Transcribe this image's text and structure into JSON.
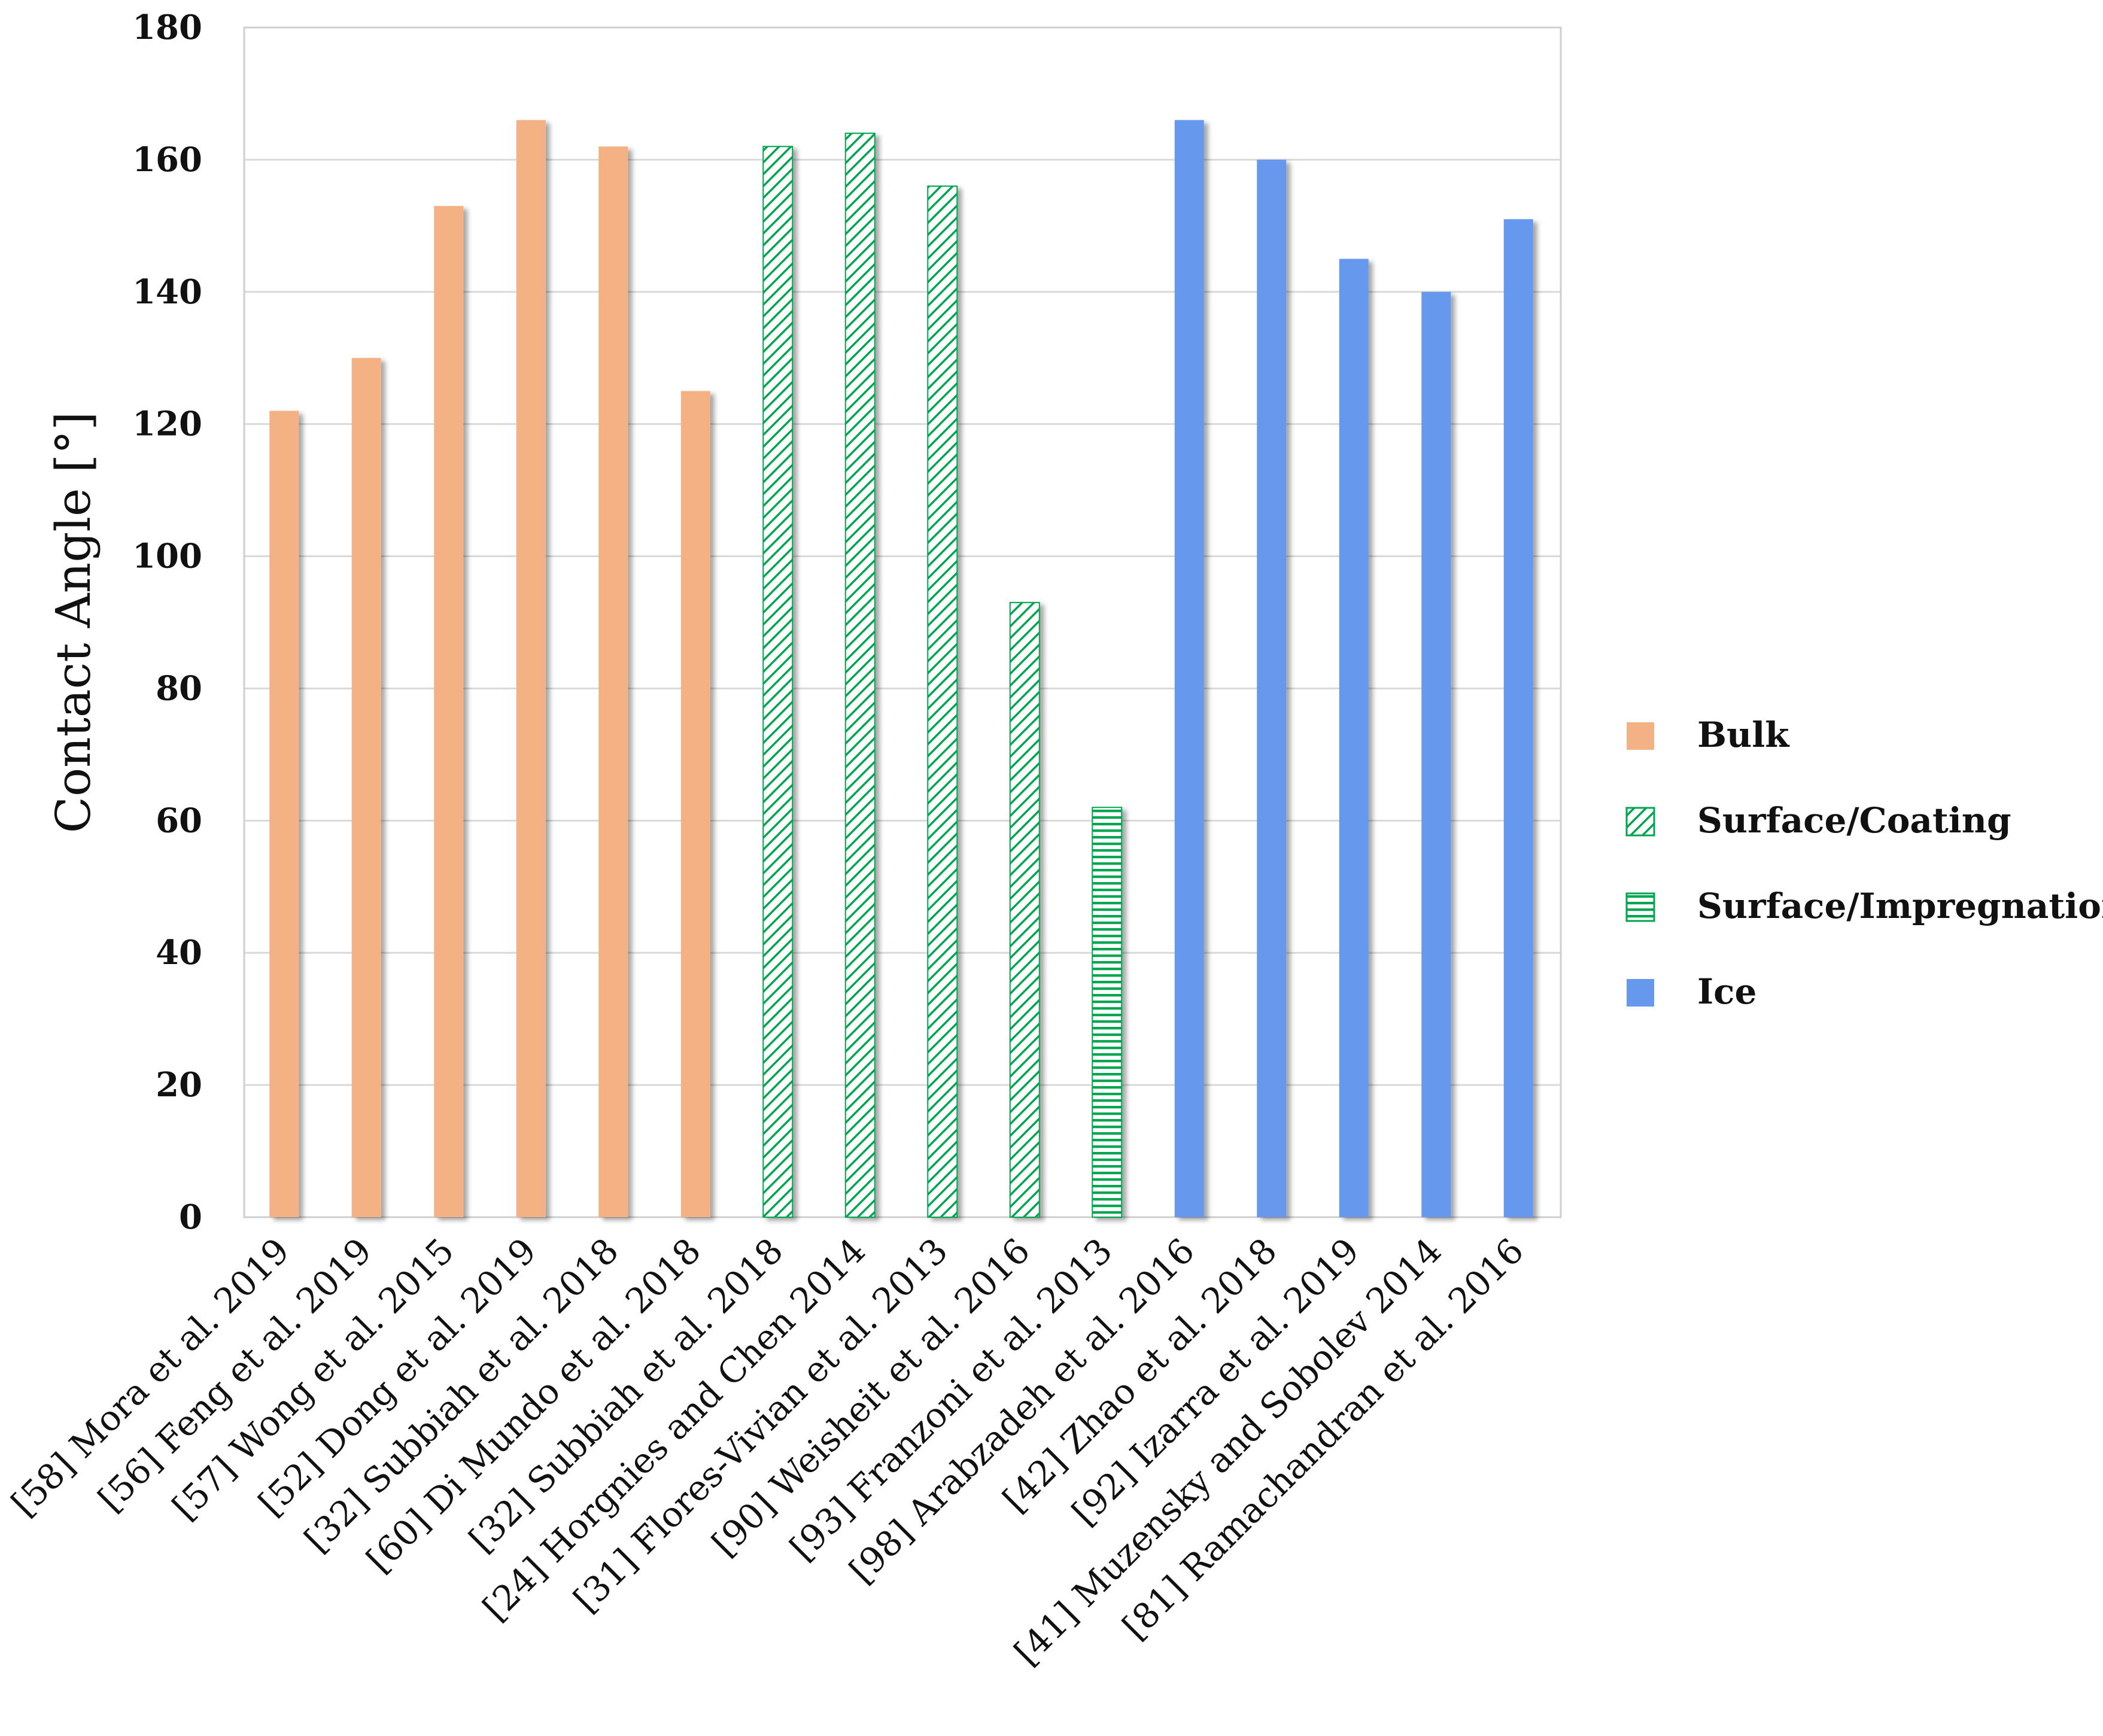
{
  "chart_data": {
    "type": "bar",
    "title": "",
    "xlabel": "",
    "ylabel": "Contact Angle [°]",
    "ylim": [
      0,
      180
    ],
    "yticks": [
      0,
      20,
      40,
      60,
      80,
      100,
      120,
      140,
      160,
      180
    ],
    "grid": true,
    "legend_position": "right",
    "series": [
      {
        "name": "Bulk",
        "color": "#F4B183",
        "pattern": "solid"
      },
      {
        "name": "Surface/Coating",
        "color": "#00A550",
        "pattern": "diagonal-hatch"
      },
      {
        "name": "Surface/Impregnation",
        "color": "#00A550",
        "pattern": "horizontal-hatch"
      },
      {
        "name": "Ice",
        "color": "#6699EE",
        "pattern": "solid"
      }
    ],
    "categories": [
      "[58] Mora et al. 2019",
      "[56] Feng et al. 2019",
      "[57] Wong et al. 2015",
      "[52] Dong et al. 2019",
      "[32] Subbiah et al. 2018",
      "[60] Di Mundo et al. 2018",
      "[32] Subbiah et al. 2018",
      "[24] Horgnies and Chen 2014",
      "[31] Flores-Vivian et al. 2013",
      "[90] Weisheit et al. 2016",
      "[93] Franzoni et al. 2013",
      "[98] Arabzadeh et al. 2016",
      "[42] Zhao et al. 2018",
      "[92] Izarra et al. 2019",
      "[41] Muzensky and Sobolev 2014",
      "[81] Ramachandran et al. 2016"
    ],
    "values": [
      122,
      130,
      153,
      166,
      162,
      125,
      162,
      164,
      156,
      93,
      62,
      166,
      160,
      145,
      140,
      151
    ],
    "groups": [
      "Bulk",
      "Bulk",
      "Bulk",
      "Bulk",
      "Bulk",
      "Bulk",
      "Surface/Coating",
      "Surface/Coating",
      "Surface/Coating",
      "Surface/Coating",
      "Surface/Impregnation",
      "Ice",
      "Ice",
      "Ice",
      "Ice",
      "Ice"
    ]
  }
}
